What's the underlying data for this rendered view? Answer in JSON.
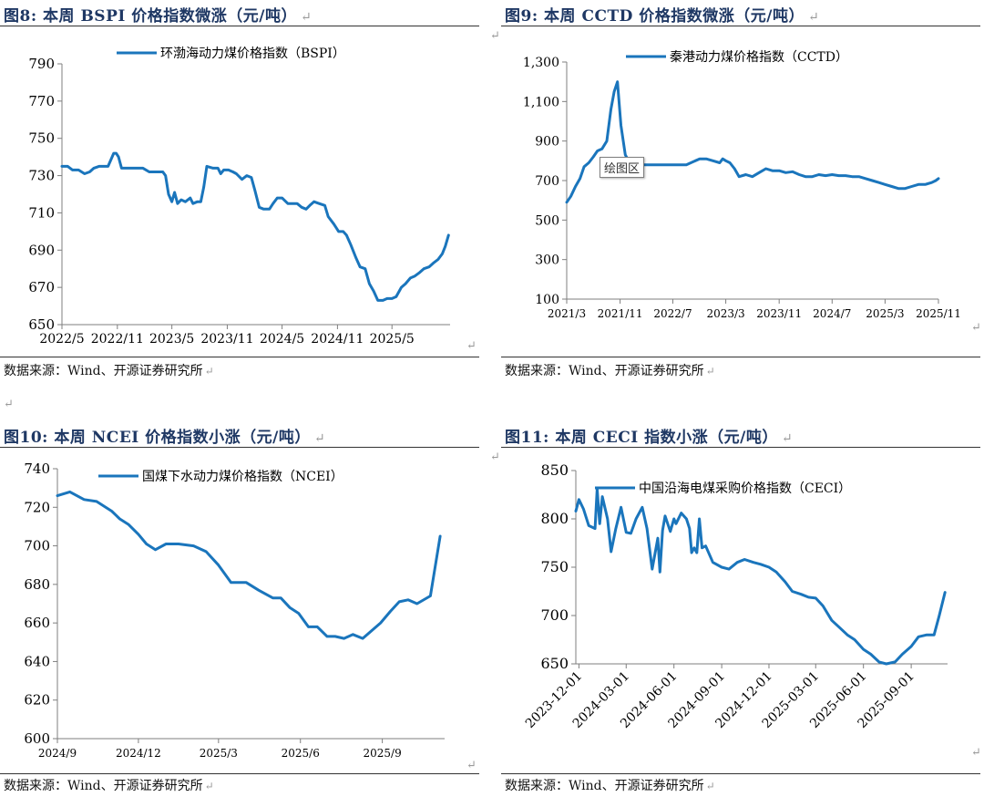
{
  "panels": [
    {
      "title": "图8:  本周 BSPI 价格指数微涨（元/吨）",
      "source": "数据来源：Wind、开源证券研究所"
    },
    {
      "title": "图9:  本周 CCTD 价格指数微涨（元/吨）",
      "source": "数据来源：Wind、开源证券研究所",
      "tooltip": "绘图区"
    },
    {
      "title": "图10:  本周 NCEI 价格指数小涨（元/吨）",
      "source": "数据来源：Wind、开源证券研究所"
    },
    {
      "title": "图11:  本周 CECI 指数小涨（元/吨）",
      "source": "数据来源：Wind、开源证券研究所"
    }
  ],
  "return_mark": "↵",
  "chart_data": [
    {
      "type": "line",
      "title": "",
      "xlabel": "",
      "ylabel": "",
      "x_ticks": [
        "2022/5",
        "2022/11",
        "2023/5",
        "2023/11",
        "2024/5",
        "2024/11",
        "2025/5"
      ],
      "y_ticks": [
        650,
        670,
        690,
        710,
        730,
        750,
        770,
        790
      ],
      "ylim": [
        650,
        790
      ],
      "legend_position": "top-center",
      "grid": false,
      "series": [
        {
          "name": "环渤海动力煤价格指数（BSPI）",
          "color": "#1a75bc",
          "x": [
            "2022-05-01",
            "2022-05-20",
            "2022-06-05",
            "2022-06-25",
            "2022-07-15",
            "2022-08-01",
            "2022-08-15",
            "2022-09-01",
            "2022-09-20",
            "2022-10-01",
            "2022-10-20",
            "2022-10-28",
            "2022-11-05",
            "2022-11-15",
            "2022-11-25",
            "2022-12-15",
            "2023-01-05",
            "2023-01-25",
            "2023-02-15",
            "2023-03-01",
            "2023-03-20",
            "2023-04-01",
            "2023-04-10",
            "2023-04-20",
            "2023-05-01",
            "2023-05-10",
            "2023-05-20",
            "2023-06-01",
            "2023-06-15",
            "2023-07-01",
            "2023-07-10",
            "2023-07-25",
            "2023-08-05",
            "2023-08-15",
            "2023-08-25",
            "2023-09-15",
            "2023-10-01",
            "2023-10-10",
            "2023-10-20",
            "2023-11-05",
            "2023-11-20",
            "2023-12-01",
            "2023-12-20",
            "2024-01-05",
            "2024-01-20",
            "2024-02-01",
            "2024-02-15",
            "2024-03-01",
            "2024-03-20",
            "2024-04-01",
            "2024-04-15",
            "2024-05-01",
            "2024-05-20",
            "2024-06-01",
            "2024-06-20",
            "2024-07-05",
            "2024-07-20",
            "2024-08-01",
            "2024-08-15",
            "2024-09-01",
            "2024-09-20",
            "2024-10-01",
            "2024-10-20",
            "2024-11-05",
            "2024-11-20",
            "2024-12-01",
            "2024-12-15",
            "2025-01-01",
            "2025-01-15",
            "2025-02-01",
            "2025-02-15",
            "2025-03-01",
            "2025-03-15",
            "2025-04-01",
            "2025-04-15",
            "2025-05-01",
            "2025-05-15",
            "2025-06-01",
            "2025-06-15",
            "2025-07-01",
            "2025-07-15",
            "2025-08-01",
            "2025-08-15",
            "2025-09-01",
            "2025-09-15",
            "2025-10-01",
            "2025-10-15",
            "2025-10-25",
            "2025-11-05"
          ],
          "values": [
            735,
            735,
            733,
            733,
            731,
            732,
            734,
            735,
            735,
            735,
            742,
            742,
            740,
            734,
            734,
            734,
            734,
            734,
            732,
            732,
            732,
            732,
            730,
            720,
            716,
            721,
            715,
            717,
            716,
            718,
            715,
            716,
            716,
            724,
            735,
            734,
            734,
            731,
            733,
            733,
            732,
            731,
            728,
            730,
            729,
            722,
            713,
            712,
            712,
            715,
            718,
            718,
            715,
            715,
            715,
            713,
            712,
            714,
            716,
            715,
            714,
            708,
            704,
            700,
            700,
            698,
            693,
            686,
            681,
            680,
            672,
            668,
            663,
            663,
            664,
            664,
            665,
            670,
            672,
            675,
            676,
            678,
            680,
            681,
            683,
            685,
            688,
            692,
            698
          ]
        }
      ]
    },
    {
      "type": "line",
      "title": "",
      "xlabel": "",
      "ylabel": "",
      "x_ticks": [
        "2021/3",
        "2021/11",
        "2022/7",
        "2023/3",
        "2023/11",
        "2024/7",
        "2025/3",
        "2025/11"
      ],
      "y_ticks": [
        100,
        300,
        500,
        700,
        900,
        1100,
        1300
      ],
      "y_tick_labels": [
        "100",
        "300",
        "500",
        "700",
        "900",
        "1,100",
        "1,300"
      ],
      "ylim": [
        100,
        1300
      ],
      "legend_position": "top-center",
      "grid": false,
      "series": [
        {
          "name": "秦港动力煤价格指数（CCTD）",
          "color": "#1a75bc",
          "x": [
            "2021-03-01",
            "2021-03-20",
            "2021-04-10",
            "2021-05-01",
            "2021-05-20",
            "2021-06-10",
            "2021-07-01",
            "2021-07-20",
            "2021-08-10",
            "2021-09-01",
            "2021-09-20",
            "2021-10-05",
            "2021-10-20",
            "2021-11-05",
            "2021-11-25",
            "2021-12-15",
            "2022-01-15",
            "2022-03-01",
            "2022-05-01",
            "2022-07-01",
            "2022-09-01",
            "2022-11-01",
            "2022-12-01",
            "2023-01-01",
            "2023-02-01",
            "2023-02-15",
            "2023-03-01",
            "2023-03-20",
            "2023-04-10",
            "2023-05-01",
            "2023-06-01",
            "2023-07-01",
            "2023-08-01",
            "2023-09-01",
            "2023-10-01",
            "2023-11-01",
            "2023-12-01",
            "2024-01-01",
            "2024-02-01",
            "2024-03-01",
            "2024-04-01",
            "2024-05-01",
            "2024-06-01",
            "2024-07-01",
            "2024-08-01",
            "2024-09-01",
            "2024-10-01",
            "2024-11-01",
            "2024-12-01",
            "2025-01-01",
            "2025-02-01",
            "2025-03-01",
            "2025-04-01",
            "2025-05-01",
            "2025-06-01",
            "2025-07-01",
            "2025-08-01",
            "2025-09-01",
            "2025-10-01",
            "2025-10-20",
            "2025-11-01"
          ],
          "values": [
            590,
            620,
            670,
            710,
            770,
            790,
            820,
            850,
            860,
            900,
            1060,
            1150,
            1200,
            980,
            830,
            790,
            780,
            780,
            780,
            780,
            780,
            810,
            810,
            800,
            790,
            810,
            800,
            790,
            760,
            720,
            730,
            720,
            740,
            760,
            750,
            750,
            740,
            745,
            730,
            720,
            720,
            730,
            725,
            730,
            725,
            725,
            720,
            720,
            710,
            700,
            690,
            680,
            670,
            660,
            660,
            670,
            680,
            680,
            690,
            700,
            710
          ]
        }
      ]
    },
    {
      "type": "line",
      "title": "",
      "xlabel": "",
      "ylabel": "",
      "x_ticks": [
        "2024/9",
        "2024/12",
        "2025/3",
        "2025/6",
        "2025/9"
      ],
      "y_ticks": [
        600,
        620,
        640,
        660,
        680,
        700,
        720,
        740
      ],
      "ylim": [
        600,
        740
      ],
      "legend_position": "top-center",
      "grid": false,
      "series": [
        {
          "name": "国煤下水动力煤价格指数（NCEI）",
          "color": "#1a75bc",
          "x": [
            "2024-09-01",
            "2024-09-15",
            "2024-10-01",
            "2024-10-15",
            "2024-11-01",
            "2024-11-10",
            "2024-11-20",
            "2024-12-01",
            "2024-12-10",
            "2024-12-20",
            "2025-01-01",
            "2025-01-15",
            "2025-02-01",
            "2025-02-15",
            "2025-03-01",
            "2025-03-15",
            "2025-04-01",
            "2025-04-15",
            "2025-05-01",
            "2025-05-10",
            "2025-05-20",
            "2025-05-30",
            "2025-06-10",
            "2025-06-20",
            "2025-07-01",
            "2025-07-10",
            "2025-07-20",
            "2025-07-30",
            "2025-08-10",
            "2025-08-20",
            "2025-08-30",
            "2025-09-10",
            "2025-09-20",
            "2025-09-30",
            "2025-10-10",
            "2025-10-25",
            "2025-11-05"
          ],
          "values": [
            726,
            728,
            724,
            723,
            718,
            714,
            711,
            706,
            701,
            698,
            701,
            701,
            700,
            697,
            690,
            681,
            681,
            677,
            673,
            673,
            668,
            665,
            658,
            658,
            653,
            653,
            652,
            654,
            652,
            656,
            660,
            666,
            671,
            672,
            670,
            674,
            705
          ]
        }
      ]
    },
    {
      "type": "line",
      "title": "",
      "xlabel": "",
      "ylabel": "",
      "x_ticks": [
        "2023-12-01",
        "2024-03-01",
        "2024-06-01",
        "2024-09-01",
        "2024-12-01",
        "2025-03-01",
        "2025-06-01",
        "2025-09-01"
      ],
      "y_ticks": [
        650,
        700,
        750,
        800,
        850
      ],
      "ylim": [
        650,
        850
      ],
      "legend_position": "top-center",
      "grid": false,
      "series": [
        {
          "name": "中国沿海电煤采购价格指数（CECI）",
          "color": "#1a75bc",
          "x": [
            "2023-11-25",
            "2023-12-01",
            "2023-12-10",
            "2023-12-20",
            "2024-01-01",
            "2024-01-05",
            "2024-01-10",
            "2024-01-15",
            "2024-01-25",
            "2024-02-01",
            "2024-02-10",
            "2024-02-20",
            "2024-03-01",
            "2024-03-10",
            "2024-03-20",
            "2024-04-01",
            "2024-04-10",
            "2024-04-20",
            "2024-05-01",
            "2024-05-05",
            "2024-05-10",
            "2024-05-15",
            "2024-05-25",
            "2024-06-01",
            "2024-06-05",
            "2024-06-15",
            "2024-06-25",
            "2024-07-01",
            "2024-07-05",
            "2024-07-10",
            "2024-07-15",
            "2024-07-20",
            "2024-07-25",
            "2024-08-01",
            "2024-08-15",
            "2024-09-01",
            "2024-09-15",
            "2024-10-01",
            "2024-10-15",
            "2024-11-01",
            "2024-11-15",
            "2024-12-01",
            "2024-12-15",
            "2025-01-01",
            "2025-01-15",
            "2025-02-01",
            "2025-02-15",
            "2025-03-01",
            "2025-03-15",
            "2025-04-01",
            "2025-04-15",
            "2025-05-01",
            "2025-05-15",
            "2025-06-01",
            "2025-06-15",
            "2025-07-01",
            "2025-07-15",
            "2025-08-01",
            "2025-08-15",
            "2025-09-01",
            "2025-09-15",
            "2025-10-01",
            "2025-10-15",
            "2025-10-25",
            "2025-11-05"
          ],
          "values": [
            808,
            820,
            810,
            793,
            790,
            831,
            795,
            823,
            800,
            766,
            790,
            812,
            786,
            785,
            800,
            812,
            790,
            748,
            780,
            745,
            788,
            803,
            787,
            800,
            795,
            806,
            800,
            790,
            765,
            770,
            765,
            800,
            770,
            772,
            755,
            750,
            748,
            755,
            758,
            755,
            753,
            750,
            745,
            735,
            725,
            722,
            719,
            718,
            710,
            695,
            688,
            680,
            675,
            665,
            660,
            652,
            650,
            652,
            660,
            668,
            678,
            680,
            680,
            700,
            724
          ]
        }
      ]
    }
  ]
}
